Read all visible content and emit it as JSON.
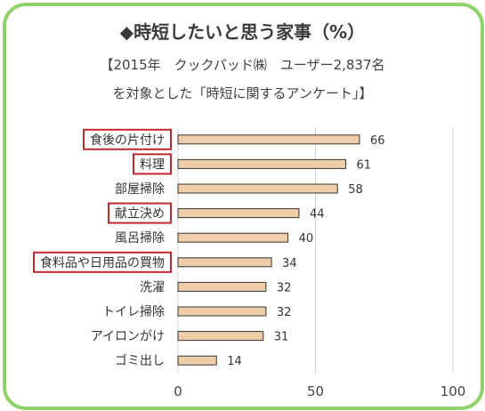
{
  "title": "◆時短したいと思う家事（%）",
  "subtitle_line1": "【2015年　クックパッド㈱　ユーザー2,837名",
  "subtitle_line2": "を対象とした「時短に関するアンケート」】",
  "colors": {
    "frame": "#8fd16a",
    "bar_fill": "#f0cda9",
    "bar_stroke": "#333333",
    "highlight_box": "#c0282d",
    "grid": "#d0d0d0"
  },
  "chart_data": {
    "type": "bar",
    "orientation": "horizontal",
    "categories": [
      "食後の片付け",
      "料理",
      "部屋掃除",
      "献立決め",
      "風呂掃除",
      "食料品や日用品の買物",
      "洗濯",
      "トイレ掃除",
      "アイロンがけ",
      "ゴミ出し"
    ],
    "values": [
      66,
      61,
      58,
      44,
      40,
      34,
      32,
      32,
      31,
      14
    ],
    "highlighted": [
      "食後の片付け",
      "料理",
      "献立決め",
      "食料品や日用品の買物"
    ],
    "xlim": [
      0,
      100
    ],
    "xticks": [
      0,
      50,
      100
    ],
    "grid": true
  }
}
